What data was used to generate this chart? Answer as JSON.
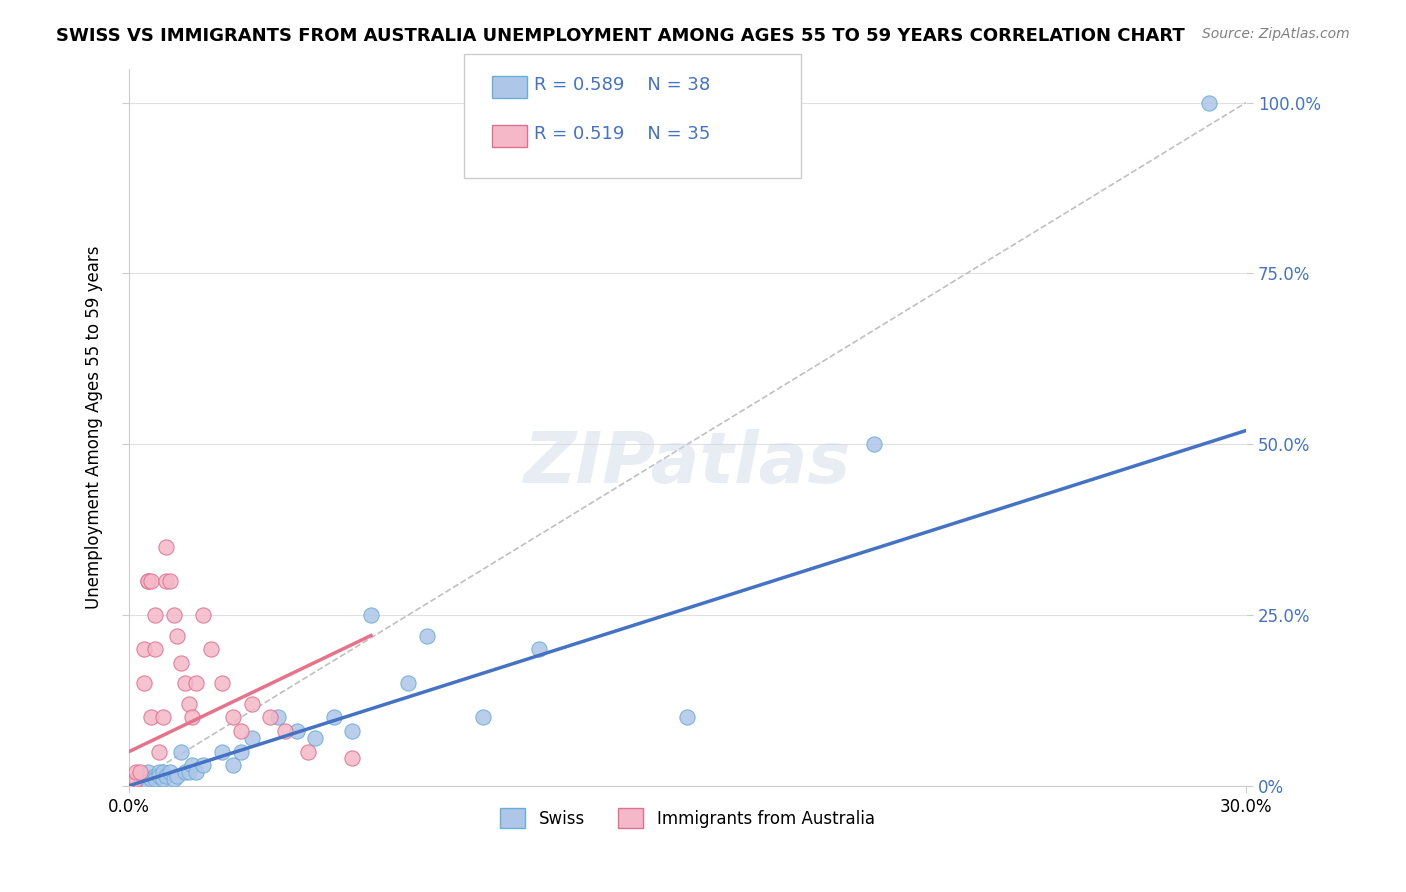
{
  "title": "SWISS VS IMMIGRANTS FROM AUSTRALIA UNEMPLOYMENT AMONG AGES 55 TO 59 YEARS CORRELATION CHART",
  "source": "Source: ZipAtlas.com",
  "xlabel": "",
  "ylabel": "Unemployment Among Ages 55 to 59 years",
  "xmin": 0.0,
  "xmax": 0.3,
  "ymin": 0.0,
  "ymax": 1.05,
  "xtick_labels": [
    "0.0%",
    "30.0%"
  ],
  "ytick_labels": [
    "0%",
    "25.0%",
    "50.0%",
    "75.0%",
    "100.0%"
  ],
  "ytick_values": [
    0.0,
    0.25,
    0.5,
    0.75,
    1.0
  ],
  "legend_R1": "R = 0.589",
  "legend_N1": "N = 38",
  "legend_R2": "R = 0.519",
  "legend_N2": "N = 35",
  "swiss_color": "#aec6e8",
  "swiss_edge_color": "#6baed6",
  "imm_color": "#f4b8c8",
  "imm_edge_color": "#e07090",
  "swiss_line_color": "#4472c4",
  "imm_line_color": "#e8728a",
  "diag_line_color": "#c0c0c0",
  "background_color": "#ffffff",
  "watermark_color": "#d0dce8",
  "swiss_scatter_x": [
    0.0,
    0.003,
    0.005,
    0.005,
    0.006,
    0.007,
    0.007,
    0.008,
    0.008,
    0.009,
    0.009,
    0.01,
    0.011,
    0.012,
    0.013,
    0.014,
    0.015,
    0.016,
    0.017,
    0.018,
    0.02,
    0.025,
    0.028,
    0.03,
    0.033,
    0.04,
    0.045,
    0.05,
    0.055,
    0.06,
    0.065,
    0.075,
    0.08,
    0.095,
    0.11,
    0.15,
    0.2,
    0.29
  ],
  "swiss_scatter_y": [
    0.0,
    0.01,
    0.005,
    0.02,
    0.01,
    0.015,
    0.01,
    0.02,
    0.015,
    0.01,
    0.02,
    0.015,
    0.02,
    0.01,
    0.015,
    0.05,
    0.02,
    0.02,
    0.03,
    0.02,
    0.03,
    0.05,
    0.03,
    0.05,
    0.07,
    0.1,
    0.08,
    0.07,
    0.1,
    0.08,
    0.25,
    0.15,
    0.22,
    0.1,
    0.2,
    0.1,
    0.5,
    1.0
  ],
  "imm_scatter_x": [
    0.0,
    0.001,
    0.002,
    0.002,
    0.003,
    0.004,
    0.004,
    0.005,
    0.005,
    0.006,
    0.006,
    0.007,
    0.007,
    0.008,
    0.009,
    0.01,
    0.01,
    0.011,
    0.012,
    0.013,
    0.014,
    0.015,
    0.016,
    0.017,
    0.018,
    0.02,
    0.022,
    0.025,
    0.028,
    0.03,
    0.033,
    0.038,
    0.042,
    0.048,
    0.06
  ],
  "imm_scatter_y": [
    0.0,
    0.0,
    0.01,
    0.02,
    0.02,
    0.15,
    0.2,
    0.3,
    0.3,
    0.3,
    0.1,
    0.25,
    0.2,
    0.05,
    0.1,
    0.3,
    0.35,
    0.3,
    0.25,
    0.22,
    0.18,
    0.15,
    0.12,
    0.1,
    0.15,
    0.25,
    0.2,
    0.15,
    0.1,
    0.08,
    0.12,
    0.1,
    0.08,
    0.05,
    0.04
  ],
  "swiss_line_x": [
    0.0,
    0.3
  ],
  "swiss_line_y": [
    0.0,
    0.52
  ],
  "imm_line_x": [
    0.0,
    0.065
  ],
  "imm_line_y": [
    0.05,
    0.22
  ],
  "diag_line_x": [
    0.0,
    0.3
  ],
  "diag_line_y": [
    0.0,
    1.0
  ]
}
